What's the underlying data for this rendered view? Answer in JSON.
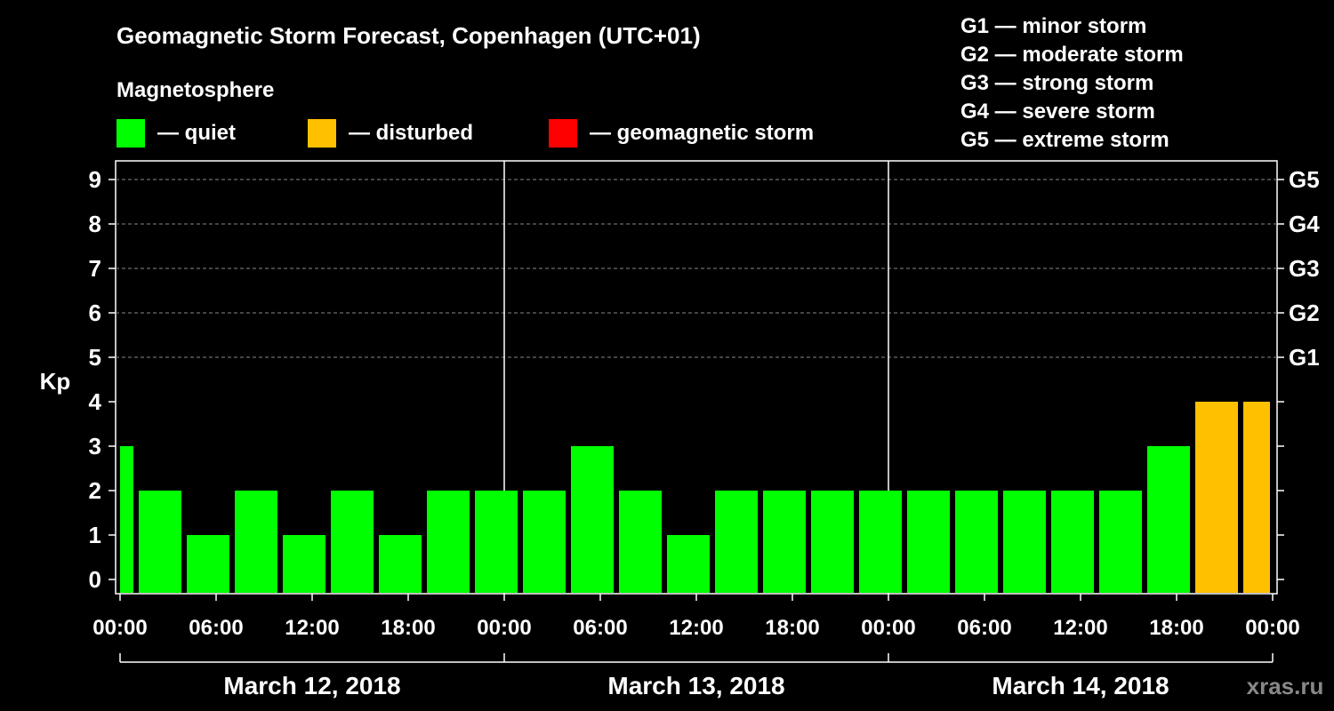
{
  "title": "Geomagnetic Storm Forecast, Copenhagen (UTC+01)",
  "legend": {
    "heading": "Magnetosphere",
    "items": [
      {
        "label": "— quiet",
        "color": "#00ff00"
      },
      {
        "label": "— disturbed",
        "color": "#ffc000"
      },
      {
        "label": "— geomagnetic storm",
        "color": "#ff0000"
      }
    ]
  },
  "storm_scale": [
    "G1 — minor storm",
    "G2 — moderate storm",
    "G3 — strong storm",
    "G4 — severe storm",
    "G5 — extreme storm"
  ],
  "watermark": "xras.ru",
  "chart_data": {
    "type": "bar",
    "ylabel": "Kp",
    "ylim": [
      0,
      9
    ],
    "yticks": [
      "0",
      "1",
      "2",
      "3",
      "4",
      "5",
      "6",
      "7",
      "8",
      "9"
    ],
    "right_ticks": [
      {
        "value": 5,
        "label": "G1"
      },
      {
        "value": 6,
        "label": "G2"
      },
      {
        "value": 7,
        "label": "G3"
      },
      {
        "value": 8,
        "label": "G4"
      },
      {
        "value": 9,
        "label": "G5"
      }
    ],
    "xticks": [
      "00:00",
      "06:00",
      "12:00",
      "18:00",
      "00:00",
      "06:00",
      "12:00",
      "18:00",
      "00:00",
      "06:00",
      "12:00",
      "18:00",
      "00:00"
    ],
    "dates": [
      "March 12, 2018",
      "March 13, 2018",
      "March 14, 2018"
    ],
    "grid": "horizontal dashed at Kp 5-9",
    "bars": [
      {
        "start": "2018-03-12 00:00",
        "end": "2018-03-12 01:00",
        "kp": 3,
        "level": "quiet"
      },
      {
        "start": "2018-03-12 01:00",
        "end": "2018-03-12 04:00",
        "kp": 2,
        "level": "quiet"
      },
      {
        "start": "2018-03-12 04:00",
        "end": "2018-03-12 07:00",
        "kp": 1,
        "level": "quiet"
      },
      {
        "start": "2018-03-12 07:00",
        "end": "2018-03-12 10:00",
        "kp": 2,
        "level": "quiet"
      },
      {
        "start": "2018-03-12 10:00",
        "end": "2018-03-12 13:00",
        "kp": 1,
        "level": "quiet"
      },
      {
        "start": "2018-03-12 13:00",
        "end": "2018-03-12 16:00",
        "kp": 2,
        "level": "quiet"
      },
      {
        "start": "2018-03-12 16:00",
        "end": "2018-03-12 19:00",
        "kp": 1,
        "level": "quiet"
      },
      {
        "start": "2018-03-12 19:00",
        "end": "2018-03-12 22:00",
        "kp": 2,
        "level": "quiet"
      },
      {
        "start": "2018-03-12 22:00",
        "end": "2018-03-13 01:00",
        "kp": 2,
        "level": "quiet"
      },
      {
        "start": "2018-03-13 01:00",
        "end": "2018-03-13 04:00",
        "kp": 2,
        "level": "quiet"
      },
      {
        "start": "2018-03-13 04:00",
        "end": "2018-03-13 07:00",
        "kp": 3,
        "level": "quiet"
      },
      {
        "start": "2018-03-13 07:00",
        "end": "2018-03-13 10:00",
        "kp": 2,
        "level": "quiet"
      },
      {
        "start": "2018-03-13 10:00",
        "end": "2018-03-13 13:00",
        "kp": 1,
        "level": "quiet"
      },
      {
        "start": "2018-03-13 13:00",
        "end": "2018-03-13 16:00",
        "kp": 2,
        "level": "quiet"
      },
      {
        "start": "2018-03-13 16:00",
        "end": "2018-03-13 19:00",
        "kp": 2,
        "level": "quiet"
      },
      {
        "start": "2018-03-13 19:00",
        "end": "2018-03-13 22:00",
        "kp": 2,
        "level": "quiet"
      },
      {
        "start": "2018-03-13 22:00",
        "end": "2018-03-14 01:00",
        "kp": 2,
        "level": "quiet"
      },
      {
        "start": "2018-03-14 01:00",
        "end": "2018-03-14 04:00",
        "kp": 2,
        "level": "quiet"
      },
      {
        "start": "2018-03-14 04:00",
        "end": "2018-03-14 07:00",
        "kp": 2,
        "level": "quiet"
      },
      {
        "start": "2018-03-14 07:00",
        "end": "2018-03-14 10:00",
        "kp": 2,
        "level": "quiet"
      },
      {
        "start": "2018-03-14 10:00",
        "end": "2018-03-14 13:00",
        "kp": 2,
        "level": "quiet"
      },
      {
        "start": "2018-03-14 13:00",
        "end": "2018-03-14 16:00",
        "kp": 2,
        "level": "quiet"
      },
      {
        "start": "2018-03-14 16:00",
        "end": "2018-03-14 19:00",
        "kp": 3,
        "level": "quiet"
      },
      {
        "start": "2018-03-14 19:00",
        "end": "2018-03-14 22:00",
        "kp": 4,
        "level": "disturbed"
      },
      {
        "start": "2018-03-14 22:00",
        "end": "2018-03-15 00:00",
        "kp": 4,
        "level": "disturbed"
      }
    ]
  }
}
